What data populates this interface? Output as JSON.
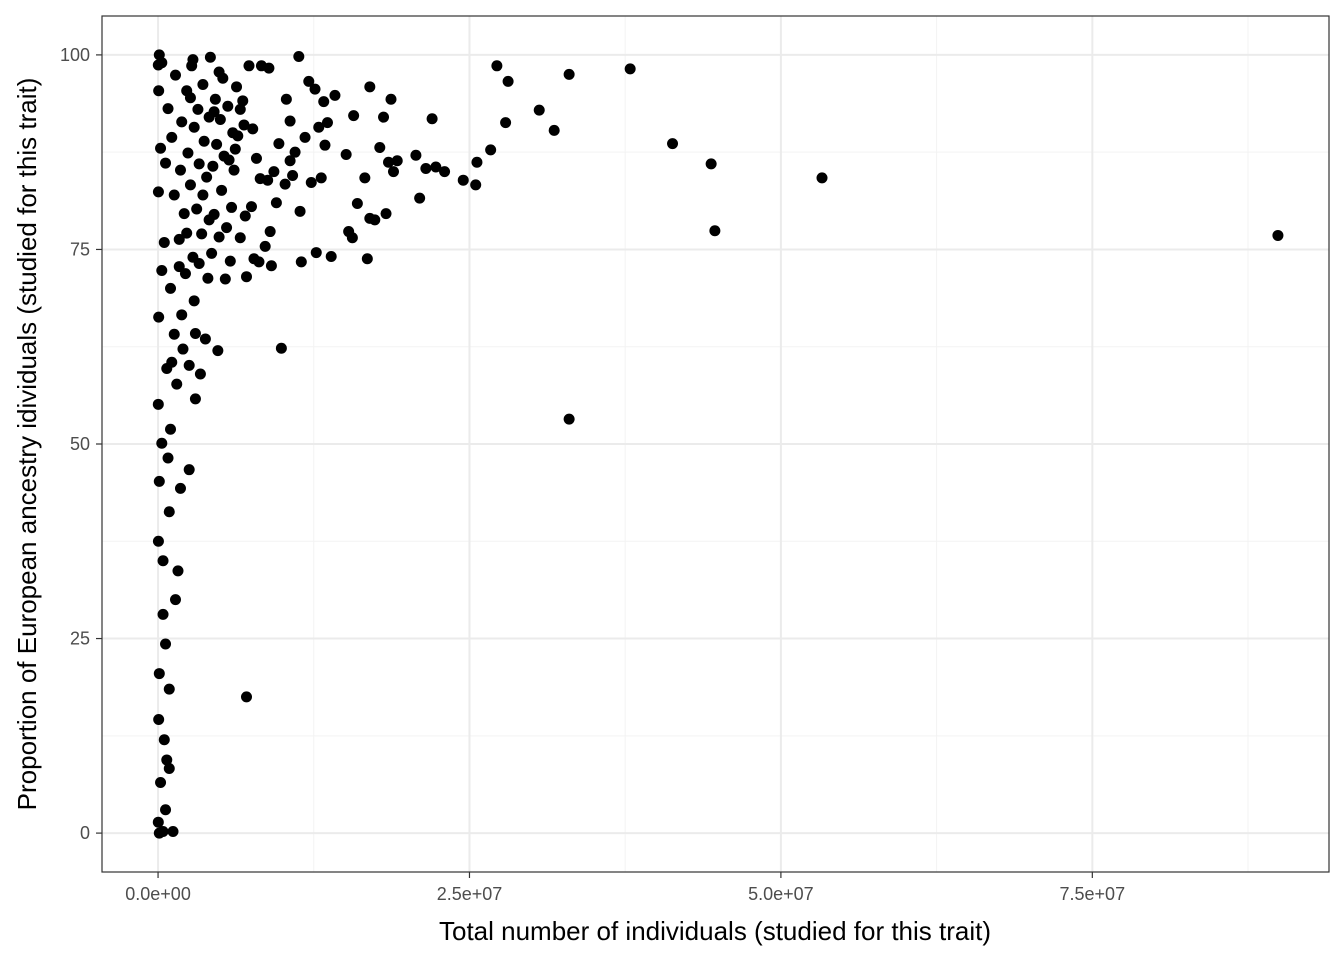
{
  "chart_data": {
    "type": "scatter",
    "title": "",
    "xlabel": "Total number of individuals (studied for this trait)",
    "ylabel": "Proportion of European ancestry idividuals (studied for this trait)",
    "xlim": [
      -4500000,
      94000000
    ],
    "ylim": [
      -5,
      105
    ],
    "x_ticks": [
      0,
      25000000,
      50000000,
      75000000
    ],
    "x_tick_labels": [
      "0.0e+00",
      "2.5e+07",
      "5.0e+07",
      "7.5e+07"
    ],
    "y_ticks": [
      0,
      25,
      50,
      75,
      100
    ],
    "y_tick_labels": [
      "0",
      "25",
      "50",
      "75",
      "100"
    ],
    "grid": true,
    "legend": "none",
    "colors": {
      "points": "#000000",
      "panel_border": "#333333",
      "grid_major": "#ebebeb",
      "grid_minor": "#f3f3f3"
    },
    "series": [
      {
        "points": [
          [
            89900000,
            76.8
          ],
          [
            53300000,
            84.2
          ],
          [
            44700000,
            77.4
          ],
          [
            44400000,
            86.0
          ],
          [
            41300000,
            88.6
          ],
          [
            37900000,
            98.2
          ],
          [
            33000000,
            97.5
          ],
          [
            33000000,
            53.2
          ],
          [
            31800000,
            90.3
          ],
          [
            30600000,
            92.9
          ],
          [
            28100000,
            96.6
          ],
          [
            27900000,
            91.3
          ],
          [
            27200000,
            98.6
          ],
          [
            26700000,
            87.8
          ],
          [
            25600000,
            86.2
          ],
          [
            25500000,
            83.3
          ],
          [
            24500000,
            83.9
          ],
          [
            23000000,
            85.0
          ],
          [
            22300000,
            85.6
          ],
          [
            21500000,
            85.4
          ],
          [
            22000000,
            91.8
          ],
          [
            21000000,
            81.6
          ],
          [
            20700000,
            87.1
          ],
          [
            19200000,
            86.4
          ],
          [
            18900000,
            85.0
          ],
          [
            18700000,
            94.3
          ],
          [
            18500000,
            86.2
          ],
          [
            18300000,
            79.6
          ],
          [
            18100000,
            92.0
          ],
          [
            17800000,
            88.1
          ],
          [
            17400000,
            78.8
          ],
          [
            17000000,
            95.9
          ],
          [
            17000000,
            79.0
          ],
          [
            16800000,
            73.8
          ],
          [
            16600000,
            84.2
          ],
          [
            16000000,
            80.9
          ],
          [
            15700000,
            92.2
          ],
          [
            15600000,
            76.5
          ],
          [
            15300000,
            77.3
          ],
          [
            15100000,
            87.2
          ],
          [
            14200000,
            94.8
          ],
          [
            13900000,
            74.1
          ],
          [
            13600000,
            91.3
          ],
          [
            13400000,
            88.4
          ],
          [
            13300000,
            94.0
          ],
          [
            13100000,
            84.2
          ],
          [
            12900000,
            90.7
          ],
          [
            12700000,
            74.6
          ],
          [
            12600000,
            95.6
          ],
          [
            12300000,
            83.6
          ],
          [
            12100000,
            96.6
          ],
          [
            11800000,
            89.4
          ],
          [
            11500000,
            73.4
          ],
          [
            11400000,
            79.9
          ],
          [
            11300000,
            99.8
          ],
          [
            11000000,
            87.5
          ],
          [
            10800000,
            84.5
          ],
          [
            10600000,
            91.5
          ],
          [
            10300000,
            94.3
          ],
          [
            10200000,
            83.4
          ],
          [
            9900000,
            62.3
          ],
          [
            9700000,
            88.6
          ],
          [
            9300000,
            85.0
          ],
          [
            9100000,
            72.9
          ],
          [
            9000000,
            77.3
          ],
          [
            8900000,
            98.3
          ],
          [
            8800000,
            83.9
          ],
          [
            8600000,
            75.4
          ],
          [
            8300000,
            98.6
          ],
          [
            8100000,
            73.4
          ],
          [
            7900000,
            86.7
          ],
          [
            7700000,
            73.8
          ],
          [
            7500000,
            80.5
          ],
          [
            7300000,
            98.6
          ],
          [
            7100000,
            71.5
          ],
          [
            7100000,
            17.5
          ],
          [
            7000000,
            79.3
          ],
          [
            6900000,
            91.0
          ],
          [
            6800000,
            94.1
          ],
          [
            6600000,
            76.5
          ],
          [
            6400000,
            89.6
          ],
          [
            6300000,
            95.9
          ],
          [
            6100000,
            85.2
          ],
          [
            6000000,
            90.0
          ],
          [
            5900000,
            80.4
          ],
          [
            5800000,
            73.5
          ],
          [
            5600000,
            93.4
          ],
          [
            5500000,
            77.8
          ],
          [
            5400000,
            71.2
          ],
          [
            5300000,
            87.0
          ],
          [
            5200000,
            97.0
          ],
          [
            5100000,
            82.6
          ],
          [
            5000000,
            91.7
          ],
          [
            4900000,
            76.6
          ],
          [
            4800000,
            62.0
          ],
          [
            4700000,
            88.5
          ],
          [
            4600000,
            94.3
          ],
          [
            4500000,
            79.5
          ],
          [
            4400000,
            85.7
          ],
          [
            4300000,
            74.5
          ],
          [
            4200000,
            99.7
          ],
          [
            4100000,
            92.0
          ],
          [
            4000000,
            71.3
          ],
          [
            3900000,
            84.3
          ],
          [
            3800000,
            63.5
          ],
          [
            3700000,
            88.9
          ],
          [
            3600000,
            96.2
          ],
          [
            3500000,
            77.0
          ],
          [
            3400000,
            59.0
          ],
          [
            3300000,
            86.0
          ],
          [
            3200000,
            93.0
          ],
          [
            3100000,
            80.2
          ],
          [
            3000000,
            64.2
          ],
          [
            2900000,
            68.4
          ],
          [
            2900000,
            90.7
          ],
          [
            2800000,
            74.0
          ],
          [
            2700000,
            98.6
          ],
          [
            2600000,
            83.3
          ],
          [
            2500000,
            46.7
          ],
          [
            2500000,
            60.1
          ],
          [
            2400000,
            87.4
          ],
          [
            2300000,
            95.4
          ],
          [
            2200000,
            71.9
          ],
          [
            2100000,
            79.6
          ],
          [
            2000000,
            62.2
          ],
          [
            1900000,
            91.4
          ],
          [
            1800000,
            44.3
          ],
          [
            1800000,
            85.2
          ],
          [
            1700000,
            76.3
          ],
          [
            1600000,
            33.7
          ],
          [
            1500000,
            57.7
          ],
          [
            1400000,
            97.4
          ],
          [
            1300000,
            64.1
          ],
          [
            1300000,
            82.0
          ],
          [
            1200000,
            0.2
          ],
          [
            1100000,
            89.4
          ],
          [
            1000000,
            70.0
          ],
          [
            1000000,
            51.9
          ],
          [
            900000,
            8.3
          ],
          [
            900000,
            41.3
          ],
          [
            800000,
            93.1
          ],
          [
            700000,
            9.4
          ],
          [
            700000,
            59.7
          ],
          [
            600000,
            3.0
          ],
          [
            600000,
            86.1
          ],
          [
            500000,
            12.0
          ],
          [
            500000,
            75.9
          ],
          [
            400000,
            0.2
          ],
          [
            400000,
            28.1
          ],
          [
            300000,
            99.0
          ],
          [
            300000,
            50.1
          ],
          [
            200000,
            6.5
          ],
          [
            200000,
            88.0
          ],
          [
            100000,
            0.0
          ],
          [
            100000,
            100.0
          ],
          [
            100000,
            20.5
          ],
          [
            100000,
            45.2
          ],
          [
            50000,
            66.3
          ],
          [
            50000,
            95.4
          ],
          [
            50000,
            14.6
          ],
          [
            30000,
            37.5
          ],
          [
            30000,
            82.4
          ],
          [
            20000,
            1.4
          ],
          [
            20000,
            55.1
          ],
          [
            20000,
            98.7
          ],
          [
            3000000,
            55.8
          ],
          [
            4500000,
            92.7
          ],
          [
            6200000,
            87.9
          ],
          [
            2800000,
            99.4
          ],
          [
            3600000,
            82.0
          ],
          [
            5700000,
            86.5
          ],
          [
            4100000,
            78.8
          ],
          [
            2300000,
            77.1
          ],
          [
            1900000,
            66.6
          ],
          [
            7600000,
            90.5
          ],
          [
            8200000,
            84.1
          ],
          [
            9500000,
            81.0
          ],
          [
            10600000,
            86.4
          ],
          [
            1700000,
            72.8
          ],
          [
            2600000,
            94.5
          ],
          [
            3300000,
            73.2
          ],
          [
            4900000,
            97.8
          ],
          [
            6600000,
            93.0
          ],
          [
            1400000,
            30.0
          ],
          [
            900000,
            18.5
          ],
          [
            600000,
            24.3
          ],
          [
            400000,
            35.0
          ],
          [
            800000,
            48.2
          ],
          [
            1100000,
            60.5
          ],
          [
            300000,
            72.3
          ]
        ]
      }
    ]
  }
}
